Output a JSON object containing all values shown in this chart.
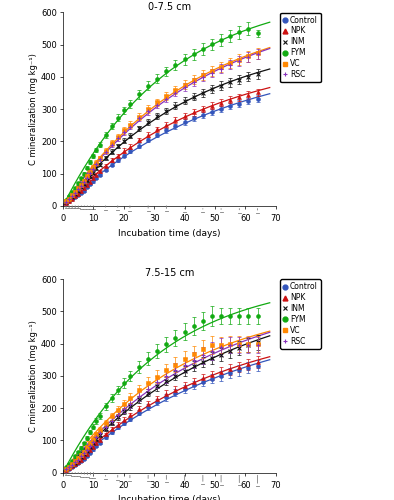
{
  "title_top": "0-7.5 cm",
  "title_bottom": "7.5-15 cm",
  "xlabel": "Incubation time (days)",
  "ylabel": "C mineralization (mg kg⁻¹)",
  "xlim": [
    0,
    70
  ],
  "ylim": [
    0,
    600
  ],
  "yticks": [
    0,
    100,
    200,
    300,
    400,
    500,
    600
  ],
  "xticks": [
    0,
    10,
    20,
    30,
    40,
    50,
    60,
    70
  ],
  "days": [
    1,
    2,
    3,
    4,
    5,
    6,
    7,
    8,
    9,
    10,
    11,
    12,
    14,
    16,
    18,
    20,
    22,
    25,
    28,
    31,
    34,
    37,
    40,
    43,
    46,
    49,
    52,
    55,
    58,
    61,
    64
  ],
  "treatments": [
    "Control",
    "NPK",
    "INM",
    "FYM",
    "VC",
    "RSC"
  ],
  "colors": [
    "#3355bb",
    "#cc1111",
    "#111111",
    "#11aa11",
    "#ff8800",
    "#8833bb"
  ],
  "markers": [
    "o",
    "^",
    "x",
    "o",
    "s",
    "+"
  ],
  "top_points": {
    "Control": [
      8,
      14,
      20,
      26,
      33,
      40,
      47,
      57,
      67,
      76,
      87,
      96,
      112,
      128,
      142,
      156,
      169,
      187,
      204,
      220,
      234,
      247,
      260,
      271,
      281,
      291,
      300,
      309,
      317,
      325,
      333
    ],
    "NPK": [
      9,
      15,
      22,
      30,
      37,
      45,
      54,
      64,
      75,
      85,
      97,
      107,
      124,
      141,
      156,
      171,
      184,
      204,
      221,
      237,
      252,
      266,
      278,
      290,
      301,
      311,
      320,
      329,
      337,
      345,
      352
    ],
    "INM": [
      12,
      20,
      28,
      37,
      47,
      57,
      67,
      79,
      91,
      103,
      116,
      128,
      148,
      168,
      185,
      202,
      218,
      240,
      260,
      278,
      295,
      311,
      326,
      339,
      351,
      363,
      373,
      383,
      392,
      401,
      409
    ],
    "FYM": [
      18,
      29,
      42,
      56,
      70,
      85,
      100,
      118,
      136,
      154,
      173,
      190,
      220,
      248,
      273,
      296,
      317,
      346,
      372,
      395,
      417,
      437,
      455,
      471,
      487,
      501,
      514,
      527,
      538,
      549,
      535
    ],
    "VC": [
      14,
      22,
      32,
      43,
      54,
      65,
      77,
      91,
      105,
      119,
      134,
      148,
      171,
      194,
      215,
      234,
      252,
      277,
      300,
      321,
      341,
      359,
      376,
      391,
      405,
      419,
      431,
      443,
      454,
      464,
      474
    ],
    "RSC": [
      13,
      21,
      30,
      40,
      51,
      62,
      73,
      87,
      101,
      115,
      130,
      144,
      167,
      189,
      209,
      228,
      246,
      271,
      293,
      314,
      333,
      351,
      368,
      384,
      399,
      413,
      426,
      438,
      450,
      461,
      471
    ]
  },
  "bottom_points": {
    "Control": [
      7,
      12,
      17,
      23,
      29,
      36,
      43,
      52,
      62,
      72,
      83,
      93,
      109,
      125,
      140,
      154,
      167,
      186,
      203,
      219,
      233,
      247,
      259,
      271,
      281,
      291,
      300,
      309,
      317,
      325,
      332
    ],
    "NPK": [
      8,
      13,
      19,
      26,
      33,
      40,
      48,
      58,
      69,
      79,
      91,
      101,
      118,
      134,
      149,
      163,
      177,
      196,
      213,
      229,
      244,
      257,
      270,
      281,
      292,
      302,
      311,
      320,
      328,
      336,
      343
    ],
    "INM": [
      10,
      16,
      23,
      31,
      39,
      48,
      57,
      68,
      80,
      92,
      105,
      117,
      136,
      155,
      173,
      190,
      205,
      228,
      248,
      267,
      285,
      301,
      316,
      330,
      343,
      355,
      366,
      377,
      387,
      396,
      404
    ],
    "FYM": [
      16,
      26,
      37,
      50,
      63,
      77,
      91,
      108,
      125,
      142,
      160,
      176,
      205,
      232,
      256,
      278,
      299,
      327,
      353,
      377,
      398,
      418,
      437,
      454,
      470,
      485,
      485,
      485,
      485,
      485,
      485
    ],
    "VC": [
      11,
      18,
      26,
      35,
      45,
      55,
      65,
      78,
      91,
      105,
      119,
      132,
      154,
      175,
      195,
      213,
      231,
      255,
      277,
      298,
      317,
      335,
      352,
      367,
      382,
      396,
      397,
      398,
      399,
      400,
      400
    ],
    "RSC": [
      10,
      16,
      23,
      32,
      40,
      50,
      59,
      71,
      83,
      96,
      109,
      122,
      142,
      161,
      180,
      197,
      214,
      238,
      260,
      280,
      299,
      317,
      334,
      349,
      364,
      377,
      390,
      395,
      396,
      397,
      397
    ]
  },
  "top_se": {
    "Control": [
      1,
      1,
      1,
      2,
      2,
      2,
      3,
      3,
      3,
      4,
      4,
      4,
      5,
      5,
      5,
      6,
      6,
      7,
      7,
      7,
      8,
      8,
      8,
      8,
      9,
      9,
      9,
      9,
      10,
      10,
      10
    ],
    "NPK": [
      1,
      1,
      2,
      2,
      2,
      3,
      3,
      3,
      4,
      4,
      4,
      5,
      5,
      6,
      6,
      7,
      7,
      7,
      8,
      8,
      9,
      9,
      9,
      10,
      10,
      10,
      11,
      11,
      11,
      12,
      12
    ],
    "INM": [
      1,
      2,
      2,
      2,
      3,
      3,
      3,
      4,
      4,
      5,
      5,
      5,
      6,
      7,
      7,
      8,
      8,
      9,
      9,
      10,
      10,
      11,
      11,
      12,
      12,
      13,
      13,
      14,
      14,
      14,
      15
    ],
    "FYM": [
      2,
      2,
      3,
      3,
      4,
      4,
      5,
      5,
      6,
      7,
      7,
      8,
      9,
      10,
      11,
      11,
      12,
      13,
      14,
      15,
      15,
      16,
      17,
      17,
      18,
      18,
      19,
      19,
      20,
      20,
      12
    ],
    "VC": [
      1,
      2,
      2,
      3,
      3,
      4,
      4,
      5,
      6,
      6,
      7,
      7,
      8,
      9,
      9,
      10,
      10,
      11,
      12,
      12,
      13,
      13,
      14,
      14,
      15,
      15,
      16,
      16,
      16,
      17,
      17
    ],
    "RSC": [
      1,
      1,
      2,
      2,
      3,
      3,
      4,
      4,
      5,
      5,
      6,
      6,
      7,
      7,
      8,
      8,
      9,
      9,
      10,
      10,
      11,
      11,
      12,
      12,
      13,
      13,
      14,
      14,
      15,
      15,
      15
    ]
  },
  "bottom_se": {
    "Control": [
      1,
      1,
      1,
      2,
      2,
      2,
      3,
      3,
      3,
      4,
      4,
      5,
      5,
      6,
      6,
      7,
      8,
      8,
      9,
      10,
      10,
      11,
      12,
      12,
      13,
      14,
      15,
      15,
      16,
      17,
      18
    ],
    "NPK": [
      1,
      1,
      2,
      2,
      2,
      3,
      3,
      4,
      4,
      4,
      5,
      5,
      6,
      7,
      7,
      8,
      8,
      9,
      10,
      10,
      11,
      12,
      12,
      13,
      14,
      14,
      15,
      16,
      16,
      17,
      18
    ],
    "INM": [
      1,
      2,
      2,
      2,
      3,
      3,
      4,
      4,
      5,
      5,
      6,
      6,
      7,
      8,
      9,
      9,
      10,
      11,
      12,
      13,
      13,
      14,
      15,
      16,
      17,
      18,
      19,
      20,
      21,
      22,
      23
    ],
    "FYM": [
      2,
      2,
      3,
      4,
      4,
      5,
      5,
      6,
      7,
      8,
      9,
      9,
      11,
      12,
      13,
      15,
      16,
      18,
      20,
      21,
      23,
      25,
      26,
      28,
      29,
      31,
      25,
      25,
      25,
      25,
      25
    ],
    "VC": [
      1,
      2,
      2,
      3,
      3,
      4,
      5,
      5,
      6,
      7,
      8,
      8,
      10,
      11,
      12,
      13,
      15,
      16,
      18,
      20,
      21,
      23,
      25,
      26,
      28,
      29,
      25,
      25,
      25,
      25,
      25
    ],
    "RSC": [
      1,
      1,
      2,
      2,
      3,
      3,
      4,
      5,
      5,
      6,
      7,
      8,
      9,
      10,
      11,
      13,
      14,
      16,
      17,
      19,
      20,
      22,
      23,
      25,
      26,
      27,
      28,
      25,
      25,
      25,
      25
    ]
  },
  "lsd_days": [
    1,
    2,
    3,
    4,
    5,
    6,
    7,
    8,
    9,
    10,
    14,
    18,
    22,
    28,
    34,
    40,
    46,
    52,
    58,
    64
  ],
  "lsd_heights_top": [
    6,
    7,
    7,
    8,
    8,
    9,
    9,
    10,
    10,
    11,
    13,
    14,
    15,
    16,
    17,
    18,
    19,
    20,
    21,
    22
  ],
  "lsd_heights_bottom": [
    8,
    9,
    10,
    11,
    12,
    13,
    14,
    15,
    16,
    17,
    20,
    23,
    25,
    27,
    30,
    33,
    36,
    38,
    40,
    42
  ]
}
